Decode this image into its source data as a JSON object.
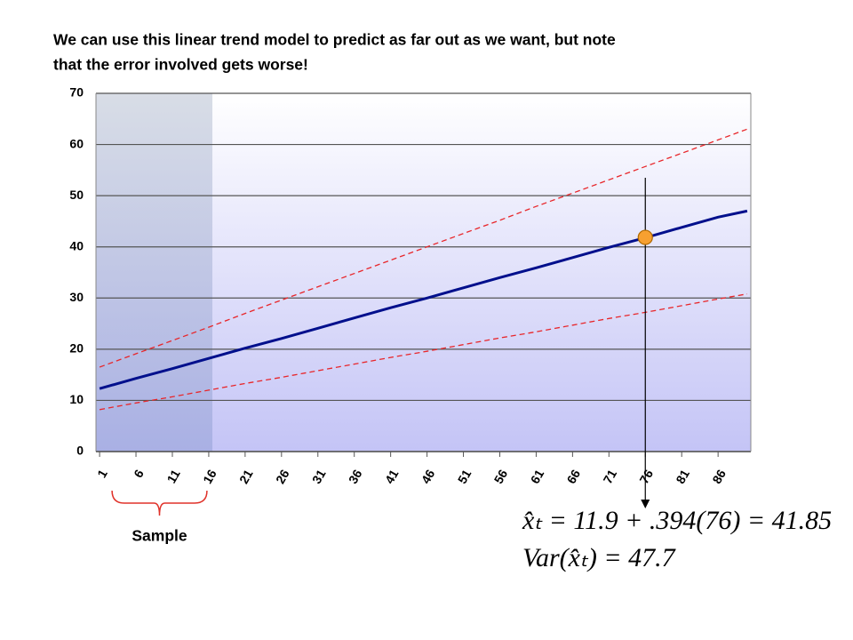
{
  "chart_data": {
    "type": "line",
    "title": [
      "We can use this linear trend model to predict as far out as we want, but note",
      "that the error involved gets worse!"
    ],
    "x": [
      1,
      6,
      11,
      16,
      21,
      26,
      31,
      36,
      41,
      46,
      51,
      56,
      61,
      66,
      71,
      76,
      81,
      86,
      90
    ],
    "xlim": [
      0.5,
      90.5
    ],
    "xticks": [
      1,
      6,
      11,
      16,
      21,
      26,
      31,
      36,
      41,
      46,
      51,
      56,
      61,
      66,
      71,
      76,
      81,
      86
    ],
    "ylim": [
      0,
      70
    ],
    "yticks": [
      0,
      10,
      20,
      30,
      40,
      50,
      60,
      70
    ],
    "grid": true,
    "series": [
      {
        "color": "#e8262a",
        "dashed": true,
        "values": [
          16.5,
          19.1,
          21.7,
          24.3,
          27.0,
          29.6,
          32.2,
          34.8,
          37.4,
          40.0,
          42.6,
          45.2,
          47.9,
          50.5,
          53.1,
          55.7,
          58.3,
          60.9,
          63.0
        ]
      },
      {
        "color": "#000f8c",
        "dashed": false,
        "values": [
          12.3,
          14.3,
          16.2,
          18.2,
          20.2,
          22.1,
          24.1,
          26.1,
          28.1,
          30.0,
          32.0,
          34.0,
          35.9,
          37.9,
          39.9,
          41.8,
          43.8,
          45.8,
          47.0
        ]
      },
      {
        "color": "#e8262a",
        "dashed": true,
        "values": [
          8.2,
          9.5,
          10.7,
          12.0,
          13.3,
          14.5,
          15.8,
          17.1,
          18.4,
          19.6,
          20.9,
          22.2,
          23.4,
          24.7,
          26.0,
          27.2,
          28.5,
          29.8,
          30.8
        ]
      }
    ],
    "highlight_point": {
      "x": 76,
      "y": 41.85,
      "color": "#f7a030"
    },
    "sample": {
      "label": "Sample",
      "start": 1,
      "end": 16
    },
    "formulas": [
      "x̂ₜ = 11.9 + .394(76) = 41.85",
      "Var(x̂ₜ) = 47.7"
    ]
  }
}
